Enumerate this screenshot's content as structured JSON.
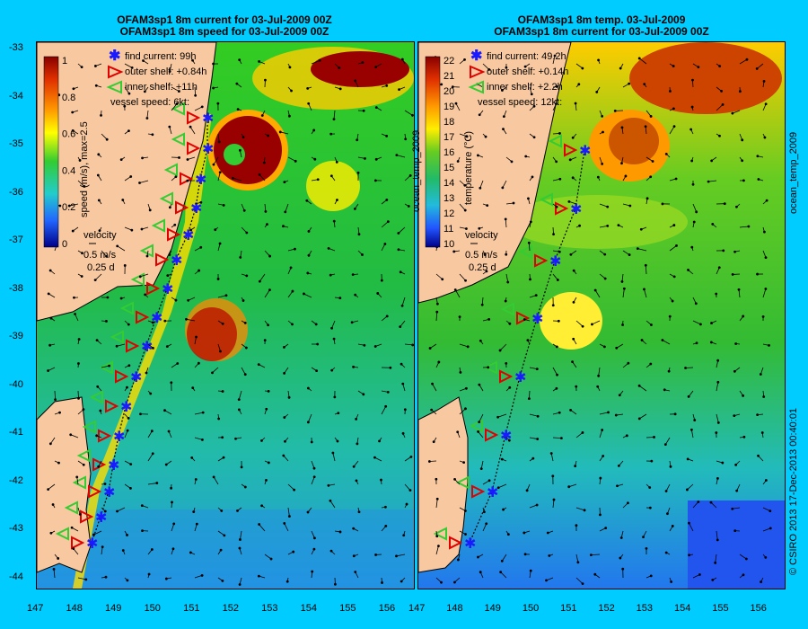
{
  "left_panel": {
    "title_line1": "OFAM3sp1 8m current for 03-Jul-2009 00Z",
    "title_line2": "OFAM3sp1 8m speed for 03-Jul-2009 00Z",
    "legend": {
      "find_current": "find current: 99h",
      "outer_shelf": "outer shelf: +0.84h",
      "inner_shelf": "inner shelf: +11h",
      "vessel_speed": "vessel speed: 6kt:"
    },
    "colorbar_label": "speed (m/s), max=2.5",
    "colorbar_ticks": [
      "1",
      "0.8",
      "0.6",
      "0.4",
      "0.2",
      "0"
    ],
    "velocity_label": "velocity",
    "velocity_scale": "0.5 m/s",
    "velocity_time": "0.25 d"
  },
  "right_panel": {
    "title_line1": "OFAM3sp1 8m temp. 03-Jul-2009",
    "title_line2": "OFAM3sp1 8m current for 03-Jul-2009 00Z",
    "legend": {
      "find_current": "find current: 49.2h",
      "outer_shelf": "outer shelf: +0.14h",
      "inner_shelf": "inner shelf: +2.2h",
      "vessel_speed": "vessel speed: 12kt:"
    },
    "colorbar_label": "temperature (°C)",
    "colorbar_side_label": "ocean_temp_2009",
    "colorbar_ticks": [
      "22",
      "21",
      "20",
      "19",
      "18",
      "17",
      "16",
      "15",
      "14",
      "13",
      "12",
      "11",
      "10"
    ],
    "velocity_label": "velocity",
    "velocity_scale": "0.5 m/s",
    "velocity_time": "0.25 d",
    "right_side_label": "ocean_temp_2009"
  },
  "y_axis_ticks": [
    "-33",
    "-34",
    "-35",
    "-36",
    "-37",
    "-38",
    "-39",
    "-40",
    "-41",
    "-42",
    "-43",
    "-44"
  ],
  "x_axis_ticks": [
    "147",
    "148",
    "149",
    "150",
    "151",
    "152",
    "153",
    "154",
    "155",
    "156"
  ],
  "copyright": "© CSIRO 2013   17-Dec-2013 00:40:01",
  "colors": {
    "background": "#00ccff",
    "land": "#f8c8a0",
    "find_current": "#1a1aff",
    "outer_shelf": "#e00000",
    "inner_shelf": "#33cc33"
  }
}
